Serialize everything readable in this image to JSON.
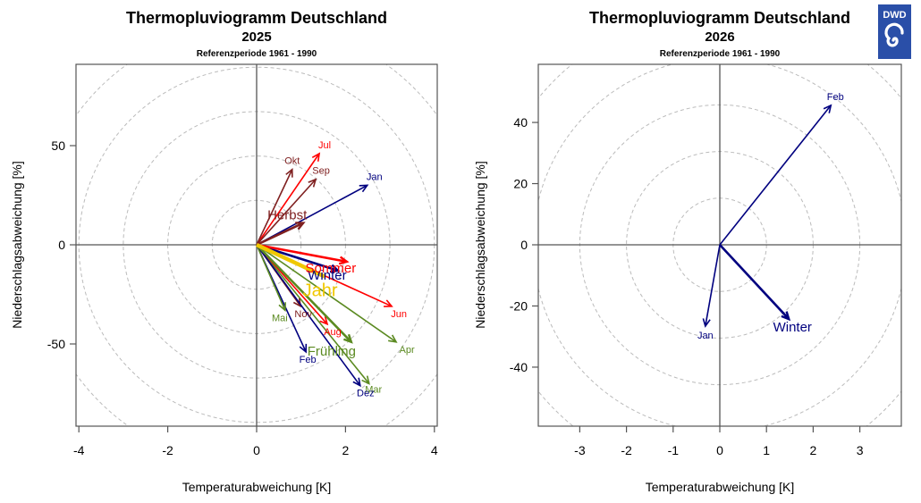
{
  "logo": {
    "text": "DWD",
    "icon": "dwd-swirl-logo-icon",
    "color": "#2a4fa8"
  },
  "colors": {
    "winter": "#00007f",
    "spring": "#5b8a21",
    "summer": "#ff0000",
    "autumn": "#7f2020",
    "year": "#f0c800",
    "grid": "#bbbbbb",
    "axis": "#555555"
  },
  "chart_data": [
    {
      "type": "scatter",
      "subtype": "vector-plot",
      "title": "Thermopluviogramm Deutschland",
      "year_label": "2025",
      "subtitle": "Referenzperiode 1961 - 1990",
      "xlabel": "Temperaturabweichung [K]",
      "ylabel": "Niederschlagsabweichung [%]",
      "xlim": [
        -4.05,
        4.05
      ],
      "ylim": [
        -91,
        91
      ],
      "xticks": [
        -4,
        -2,
        0,
        2,
        4
      ],
      "yticks": [
        -50,
        0,
        50
      ],
      "grid": "concentric-dashed-circles",
      "ring_step_K": 1,
      "vectors": [
        {
          "label": "Jan",
          "season": "winter",
          "x": 2.49,
          "y": 30,
          "kind": "month"
        },
        {
          "label": "Feb",
          "season": "winter",
          "x": 1.11,
          "y": -54,
          "kind": "month"
        },
        {
          "label": "Mar",
          "season": "spring",
          "x": 2.53,
          "y": -70,
          "kind": "month"
        },
        {
          "label": "Apr",
          "season": "spring",
          "x": 3.14,
          "y": -49,
          "kind": "month"
        },
        {
          "label": "Mai",
          "season": "spring",
          "x": 0.64,
          "y": -33,
          "kind": "month"
        },
        {
          "label": "Jun",
          "season": "summer",
          "x": 3.04,
          "y": -31,
          "kind": "month"
        },
        {
          "label": "Jul",
          "season": "summer",
          "x": 1.41,
          "y": 46,
          "kind": "month"
        },
        {
          "label": "Aug",
          "season": "summer",
          "x": 1.59,
          "y": -40,
          "kind": "month"
        },
        {
          "label": "Sep",
          "season": "autumn",
          "x": 1.33,
          "y": 33,
          "kind": "month"
        },
        {
          "label": "Okt",
          "season": "autumn",
          "x": 0.8,
          "y": 38,
          "kind": "month"
        },
        {
          "label": "Nov",
          "season": "autumn",
          "x": 0.99,
          "y": -31,
          "kind": "month"
        },
        {
          "label": "Dez",
          "season": "winter",
          "x": 2.33,
          "y": -71,
          "kind": "month"
        },
        {
          "label": "Winter",
          "season": "winter",
          "x": 1.83,
          "y": -13,
          "kind": "season"
        },
        {
          "label": "Frühling",
          "season": "spring",
          "x": 2.13,
          "y": -49,
          "kind": "season"
        },
        {
          "label": "Sommer",
          "season": "summer",
          "x": 2.03,
          "y": -8.5,
          "kind": "season"
        },
        {
          "label": "Herbst",
          "season": "autumn",
          "x": 1.05,
          "y": 11,
          "kind": "season"
        },
        {
          "label": "Jahr",
          "season": "year",
          "x": 1.53,
          "y": -16,
          "kind": "year"
        }
      ]
    },
    {
      "type": "scatter",
      "subtype": "vector-plot",
      "title": "Thermopluviogramm Deutschland",
      "year_label": "2026",
      "subtitle": "Referenzperiode 1961 - 1990",
      "xlabel": "Temperaturabweichung [K]",
      "ylabel": "Niederschlagsabweichung [%]",
      "xlim": [
        -3.9,
        3.9
      ],
      "ylim": [
        -59,
        59
      ],
      "xticks": [
        -3,
        -2,
        -1,
        0,
        1,
        2,
        3
      ],
      "yticks": [
        -40,
        -20,
        0,
        20,
        40
      ],
      "grid": "concentric-dashed-circles",
      "ring_step_K": 1,
      "vectors": [
        {
          "label": "Jan",
          "season": "winter",
          "x": -0.31,
          "y": -26.6,
          "kind": "month"
        },
        {
          "label": "Feb",
          "season": "winter",
          "x": 2.38,
          "y": 45.6,
          "kind": "month"
        },
        {
          "label": "Winter",
          "season": "winter",
          "x": 1.48,
          "y": -24.3,
          "kind": "season"
        }
      ]
    }
  ]
}
